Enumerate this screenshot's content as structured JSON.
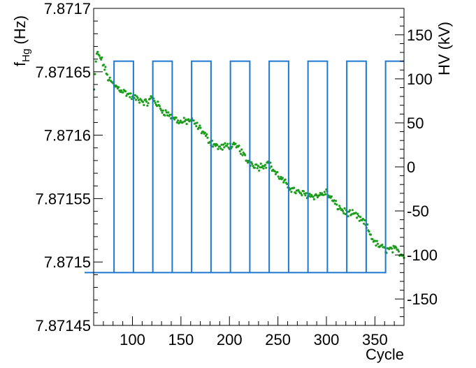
{
  "chart_data": {
    "type": "scatter",
    "title": "",
    "xlabel": "Cycle",
    "ylabel_left_main": "f",
    "ylabel_left_sub": "Hg",
    "ylabel_left_unit": " (Hz)",
    "ylabel_right": "HV (kV)",
    "xlim": [
      60,
      380
    ],
    "ylim_left": [
      7.87145,
      7.8717
    ],
    "ylim_right": [
      -180,
      180
    ],
    "grid": false,
    "legend": "none",
    "x_ticks": [
      100,
      150,
      200,
      250,
      300,
      350
    ],
    "x_tick_labels": [
      "100",
      "150",
      "200",
      "250",
      "300",
      "350"
    ],
    "y_left_ticks": [
      7.87145,
      7.8715,
      7.87155,
      7.8716,
      7.87165,
      7.8717
    ],
    "y_left_tick_labels": [
      "7.87145",
      "7.8715",
      "7.87155",
      "7.8716",
      "7.87165",
      "7.8717"
    ],
    "y_right_ticks": [
      -150,
      -100,
      -50,
      0,
      50,
      100,
      150
    ],
    "y_right_tick_labels": [
      "-150",
      "-100",
      "-50",
      "0",
      "50",
      "100",
      "150"
    ],
    "colors": {
      "frequency": "#1a9e1a",
      "hv": "#1f77d0"
    },
    "series": [
      {
        "axis": "left",
        "kind": "scatter",
        "trend": [
          [
            60,
            7.87163
          ],
          [
            63,
            7.871665
          ],
          [
            68,
            7.87166
          ],
          [
            75,
            7.871645
          ],
          [
            80,
            7.87164
          ],
          [
            90,
            7.871635
          ],
          [
            100,
            7.87163
          ],
          [
            108,
            7.871628
          ],
          [
            115,
            7.871625
          ],
          [
            120,
            7.87163
          ],
          [
            130,
            7.87162
          ],
          [
            140,
            7.871615
          ],
          [
            150,
            7.87161
          ],
          [
            160,
            7.871612
          ],
          [
            170,
            7.871605
          ],
          [
            180,
            7.871595
          ],
          [
            190,
            7.87159
          ],
          [
            200,
            7.871592
          ],
          [
            210,
            7.87159
          ],
          [
            218,
            7.87158
          ],
          [
            230,
            7.871575
          ],
          [
            240,
            7.871578
          ],
          [
            248,
            7.87157
          ],
          [
            260,
            7.87156
          ],
          [
            270,
            7.871555
          ],
          [
            280,
            7.871553
          ],
          [
            290,
            7.871552
          ],
          [
            300,
            7.871555
          ],
          [
            310,
            7.871545
          ],
          [
            318,
            7.87154
          ],
          [
            325,
            7.871538
          ],
          [
            330,
            7.871537
          ],
          [
            340,
            7.87153
          ],
          [
            350,
            7.871515
          ],
          [
            360,
            7.87151
          ],
          [
            370,
            7.87151
          ],
          [
            380,
            7.871505
          ]
        ]
      },
      {
        "axis": "right",
        "kind": "step",
        "high": 120,
        "low": -120,
        "start_low_x": 61,
        "start_high_x": 81,
        "period": 40,
        "high_duration": 20
      }
    ]
  }
}
